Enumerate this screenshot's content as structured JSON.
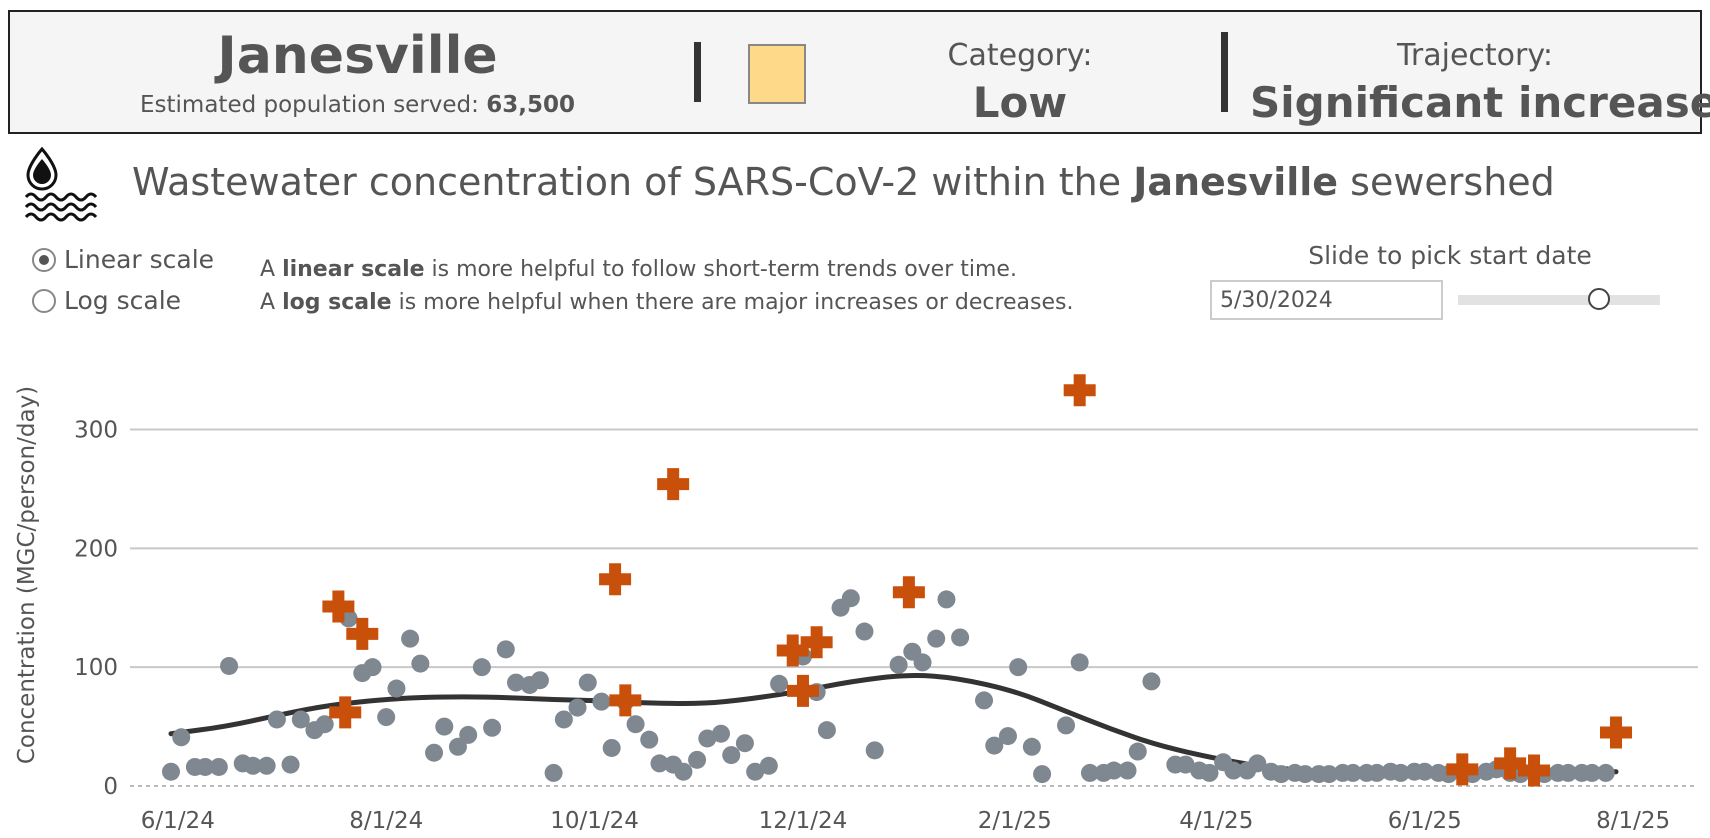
{
  "header": {
    "city": "Janesville",
    "population_label": "Estimated population served:",
    "population_value": "63,500",
    "category_label": "Category:",
    "category_value": "Low",
    "category_color": "#ffd98a",
    "trajectory_label": "Trajectory:",
    "trajectory_value": "Significant increase"
  },
  "title": {
    "icon": "wastewater-icon",
    "prefix": "Wastewater concentration of SARS-CoV-2 within the",
    "city": "Janesville",
    "suffix": "sewershed"
  },
  "controls": {
    "scale_options": [
      {
        "label": "Linear scale",
        "checked": true
      },
      {
        "label": "Log scale",
        "checked": false
      }
    ],
    "help_linear": {
      "prefix": "A",
      "bold": "linear scale",
      "suffix": "is more helpful to follow short-term trends over time."
    },
    "help_log": {
      "prefix": "A",
      "bold": "log scale",
      "suffix": "is more helpful when there are major increases or decreases."
    },
    "slider_title": "Slide to pick start date",
    "start_date": "5/30/2024",
    "slider_fraction": 0.7
  },
  "colors": {
    "point": "#7f8790",
    "outlier": "#c8500a",
    "trend": "#333333",
    "grid": "#c8c8c8"
  },
  "chart_data": {
    "type": "scatter",
    "title": "",
    "xlabel": "",
    "ylabel": "Concentration (MGC/person/day)",
    "xlim": [
      "2024-05-18",
      "2025-08-20"
    ],
    "ylim": [
      0,
      345
    ],
    "y_ticks": [
      0,
      100,
      200,
      300
    ],
    "x_ticks": [
      {
        "date": "2024-06-01",
        "label": "6/1/24"
      },
      {
        "date": "2024-08-01",
        "label": "8/1/24"
      },
      {
        "date": "2024-10-01",
        "label": "10/1/24"
      },
      {
        "date": "2024-12-01",
        "label": "12/1/24"
      },
      {
        "date": "2025-02-01",
        "label": "2/1/25"
      },
      {
        "date": "2025-04-01",
        "label": "4/1/25"
      },
      {
        "date": "2025-06-01",
        "label": "6/1/25"
      },
      {
        "date": "2025-08-01",
        "label": "8/1/25"
      }
    ],
    "grid": true,
    "series": [
      {
        "marker": "circle",
        "points": [
          [
            "2024-05-30",
            12
          ],
          [
            "2024-06-02",
            41
          ],
          [
            "2024-06-06",
            16
          ],
          [
            "2024-06-09",
            16
          ],
          [
            "2024-06-13",
            16
          ],
          [
            "2024-06-16",
            101
          ],
          [
            "2024-06-20",
            19
          ],
          [
            "2024-06-23",
            17
          ],
          [
            "2024-06-27",
            17
          ],
          [
            "2024-06-30",
            56
          ],
          [
            "2024-07-04",
            18
          ],
          [
            "2024-07-07",
            56
          ],
          [
            "2024-07-11",
            47
          ],
          [
            "2024-07-14",
            52
          ],
          [
            "2024-07-21",
            141
          ],
          [
            "2024-07-25",
            95
          ],
          [
            "2024-07-28",
            100
          ],
          [
            "2024-08-01",
            58
          ],
          [
            "2024-08-04",
            82
          ],
          [
            "2024-08-08",
            124
          ],
          [
            "2024-08-11",
            103
          ],
          [
            "2024-08-15",
            28
          ],
          [
            "2024-08-18",
            50
          ],
          [
            "2024-08-22",
            33
          ],
          [
            "2024-08-25",
            43
          ],
          [
            "2024-08-29",
            100
          ],
          [
            "2024-09-01",
            49
          ],
          [
            "2024-09-05",
            115
          ],
          [
            "2024-09-08",
            87
          ],
          [
            "2024-09-12",
            85
          ],
          [
            "2024-09-15",
            89
          ],
          [
            "2024-09-19",
            11
          ],
          [
            "2024-09-22",
            56
          ],
          [
            "2024-09-26",
            66
          ],
          [
            "2024-09-29",
            87
          ],
          [
            "2024-10-03",
            71
          ],
          [
            "2024-10-06",
            32
          ],
          [
            "2024-10-10",
            71
          ],
          [
            "2024-10-13",
            52
          ],
          [
            "2024-10-17",
            39
          ],
          [
            "2024-10-20",
            19
          ],
          [
            "2024-10-24",
            18
          ],
          [
            "2024-10-27",
            12
          ],
          [
            "2024-10-31",
            22
          ],
          [
            "2024-11-03",
            40
          ],
          [
            "2024-11-07",
            44
          ],
          [
            "2024-11-10",
            26
          ],
          [
            "2024-11-14",
            36
          ],
          [
            "2024-11-17",
            12
          ],
          [
            "2024-11-21",
            17
          ],
          [
            "2024-11-24",
            86
          ],
          [
            "2024-12-01",
            109
          ],
          [
            "2024-12-05",
            79
          ],
          [
            "2024-12-08",
            47
          ],
          [
            "2024-12-12",
            150
          ],
          [
            "2024-12-15",
            158
          ],
          [
            "2024-12-19",
            130
          ],
          [
            "2024-12-22",
            30
          ],
          [
            "2024-12-29",
            102
          ],
          [
            "2025-01-02",
            113
          ],
          [
            "2025-01-05",
            104
          ],
          [
            "2025-01-09",
            124
          ],
          [
            "2025-01-12",
            157
          ],
          [
            "2025-01-16",
            125
          ],
          [
            "2025-01-23",
            72
          ],
          [
            "2025-01-26",
            34
          ],
          [
            "2025-01-30",
            42
          ],
          [
            "2025-02-02",
            100
          ],
          [
            "2025-02-06",
            33
          ],
          [
            "2025-02-09",
            10
          ],
          [
            "2025-02-16",
            51
          ],
          [
            "2025-02-20",
            104
          ],
          [
            "2025-02-23",
            11
          ],
          [
            "2025-02-27",
            11
          ],
          [
            "2025-03-02",
            13
          ],
          [
            "2025-03-06",
            13
          ],
          [
            "2025-03-09",
            29
          ],
          [
            "2025-03-13",
            88
          ],
          [
            "2025-03-20",
            18
          ],
          [
            "2025-03-23",
            18
          ],
          [
            "2025-03-27",
            13
          ],
          [
            "2025-03-30",
            11
          ],
          [
            "2025-04-03",
            20
          ],
          [
            "2025-04-06",
            13
          ],
          [
            "2025-04-10",
            13
          ],
          [
            "2025-04-13",
            19
          ],
          [
            "2025-04-17",
            12
          ],
          [
            "2025-04-20",
            10
          ],
          [
            "2025-04-24",
            11
          ],
          [
            "2025-04-27",
            10
          ],
          [
            "2025-05-01",
            10
          ],
          [
            "2025-05-04",
            10
          ],
          [
            "2025-05-08",
            11
          ],
          [
            "2025-05-11",
            11
          ],
          [
            "2025-05-15",
            11
          ],
          [
            "2025-05-18",
            11
          ],
          [
            "2025-05-22",
            12
          ],
          [
            "2025-05-25",
            11
          ],
          [
            "2025-05-29",
            12
          ],
          [
            "2025-06-01",
            12
          ],
          [
            "2025-06-05",
            11
          ],
          [
            "2025-06-08",
            10
          ],
          [
            "2025-06-12",
            12
          ],
          [
            "2025-06-15",
            10
          ],
          [
            "2025-06-19",
            12
          ],
          [
            "2025-06-22",
            14
          ],
          [
            "2025-06-26",
            11
          ],
          [
            "2025-06-29",
            10
          ],
          [
            "2025-07-03",
            12
          ],
          [
            "2025-07-06",
            10
          ],
          [
            "2025-07-10",
            11
          ],
          [
            "2025-07-13",
            11
          ],
          [
            "2025-07-17",
            11
          ],
          [
            "2025-07-20",
            11
          ],
          [
            "2025-07-24",
            11
          ]
        ]
      },
      {
        "marker": "cross",
        "points": [
          [
            "2024-07-18",
            151
          ],
          [
            "2024-07-20",
            62
          ],
          [
            "2024-07-25",
            128
          ],
          [
            "2024-10-07",
            174
          ],
          [
            "2024-10-10",
            72
          ],
          [
            "2024-10-24",
            254
          ],
          [
            "2024-11-28",
            114
          ],
          [
            "2024-12-01",
            80
          ],
          [
            "2024-12-05",
            121
          ],
          [
            "2025-01-01",
            163
          ],
          [
            "2025-02-20",
            333
          ],
          [
            "2025-06-12",
            14
          ],
          [
            "2025-06-26",
            19
          ],
          [
            "2025-07-03",
            13
          ],
          [
            "2025-07-27",
            45
          ]
        ]
      },
      {
        "marker": "line",
        "points": [
          [
            "2024-05-30",
            44
          ],
          [
            "2024-06-15",
            50
          ],
          [
            "2024-07-01",
            60
          ],
          [
            "2024-07-15",
            68
          ],
          [
            "2024-08-01",
            73
          ],
          [
            "2024-08-15",
            75
          ],
          [
            "2024-09-01",
            75
          ],
          [
            "2024-09-15",
            73
          ],
          [
            "2024-10-01",
            72
          ],
          [
            "2024-10-15",
            70
          ],
          [
            "2024-11-01",
            69
          ],
          [
            "2024-11-15",
            73
          ],
          [
            "2024-12-01",
            80
          ],
          [
            "2024-12-15",
            88
          ],
          [
            "2025-01-01",
            94
          ],
          [
            "2025-01-15",
            91
          ],
          [
            "2025-02-01",
            80
          ],
          [
            "2025-02-15",
            64
          ],
          [
            "2025-03-01",
            48
          ],
          [
            "2025-03-15",
            34
          ],
          [
            "2025-04-01",
            23
          ],
          [
            "2025-04-15",
            16
          ],
          [
            "2025-05-01",
            12
          ],
          [
            "2025-05-15",
            10
          ],
          [
            "2025-06-01",
            10
          ],
          [
            "2025-06-15",
            10
          ],
          [
            "2025-07-01",
            10
          ],
          [
            "2025-07-15",
            11
          ],
          [
            "2025-07-27",
            12
          ]
        ]
      }
    ]
  }
}
